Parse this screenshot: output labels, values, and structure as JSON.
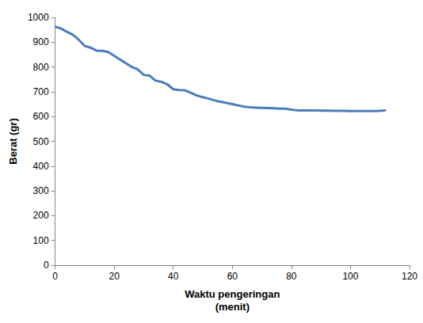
{
  "chart_data": {
    "type": "line",
    "x_label": "Waktu pengeringan\n(menit)",
    "y_label": "Berat (gr)",
    "x": [
      0,
      2,
      4,
      6,
      8,
      10,
      12,
      14,
      16,
      18,
      20,
      22,
      24,
      26,
      28,
      30,
      32,
      34,
      36,
      38,
      40,
      42,
      44,
      46,
      48,
      50,
      52,
      54,
      56,
      58,
      60,
      62,
      64,
      66,
      68,
      70,
      72,
      74,
      76,
      78,
      80,
      82,
      84,
      86,
      88,
      90,
      92,
      94,
      96,
      98,
      100,
      102,
      104,
      106,
      108,
      110,
      112
    ],
    "values": [
      963,
      955,
      942,
      930,
      910,
      885,
      878,
      866,
      865,
      860,
      845,
      830,
      815,
      800,
      790,
      768,
      765,
      745,
      740,
      730,
      710,
      707,
      706,
      695,
      685,
      678,
      672,
      665,
      660,
      655,
      650,
      645,
      640,
      637,
      636,
      635,
      634,
      633,
      632,
      632,
      628,
      625,
      625,
      625,
      625,
      624,
      624,
      623,
      623,
      623,
      622,
      622,
      622,
      622,
      622,
      623,
      625
    ],
    "color": "#4a7ebb",
    "xlim": [
      0,
      120
    ],
    "xticks": [
      0,
      20,
      40,
      60,
      80,
      100,
      120
    ],
    "ylim": [
      0,
      1000
    ],
    "yticks": [
      0,
      100,
      200,
      300,
      400,
      500,
      600,
      700,
      800,
      900,
      1000
    ],
    "grid": false
  }
}
